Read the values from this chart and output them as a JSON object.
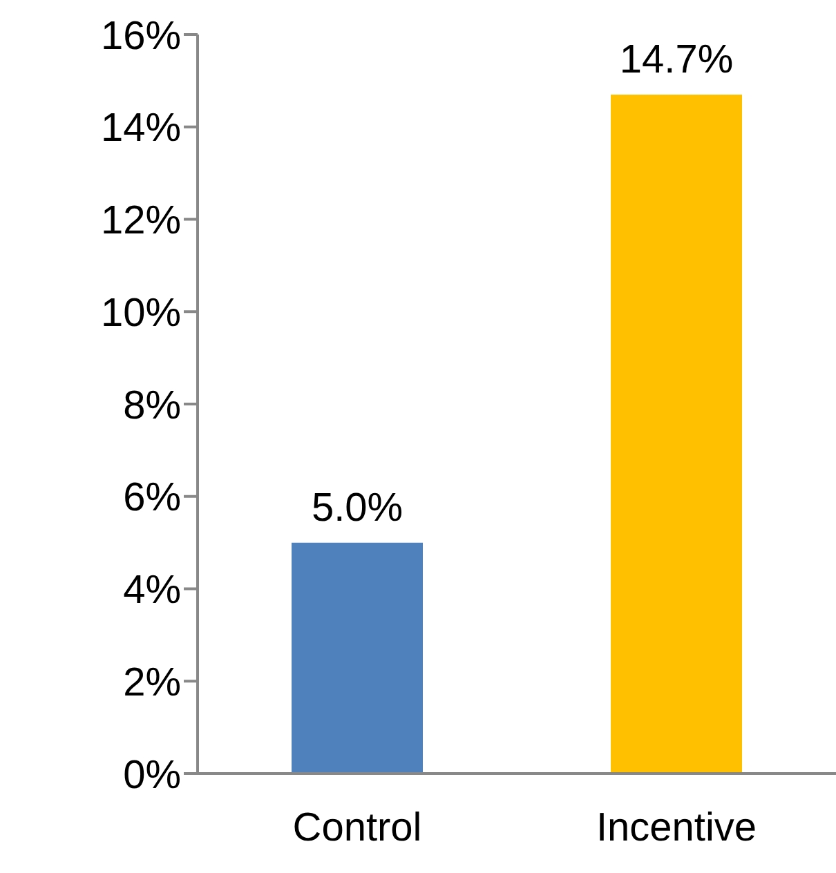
{
  "chart_data": {
    "type": "bar",
    "categories": [
      "Control",
      "Incentive"
    ],
    "values": [
      5.0,
      14.7
    ],
    "colors": [
      "#4f81bd",
      "#ffc000"
    ],
    "value_labels": [
      "5.0%",
      "14.7%"
    ],
    "ylim": [
      0,
      16
    ],
    "yticks": [
      {
        "value": 0,
        "label": "0%"
      },
      {
        "value": 2,
        "label": "2%"
      },
      {
        "value": 4,
        "label": "4%"
      },
      {
        "value": 6,
        "label": "6%"
      },
      {
        "value": 8,
        "label": "8%"
      },
      {
        "value": 10,
        "label": "10%"
      },
      {
        "value": 12,
        "label": "12%"
      },
      {
        "value": 14,
        "label": "14%"
      },
      {
        "value": 16,
        "label": "16%"
      }
    ],
    "grid": false,
    "legend": false
  }
}
